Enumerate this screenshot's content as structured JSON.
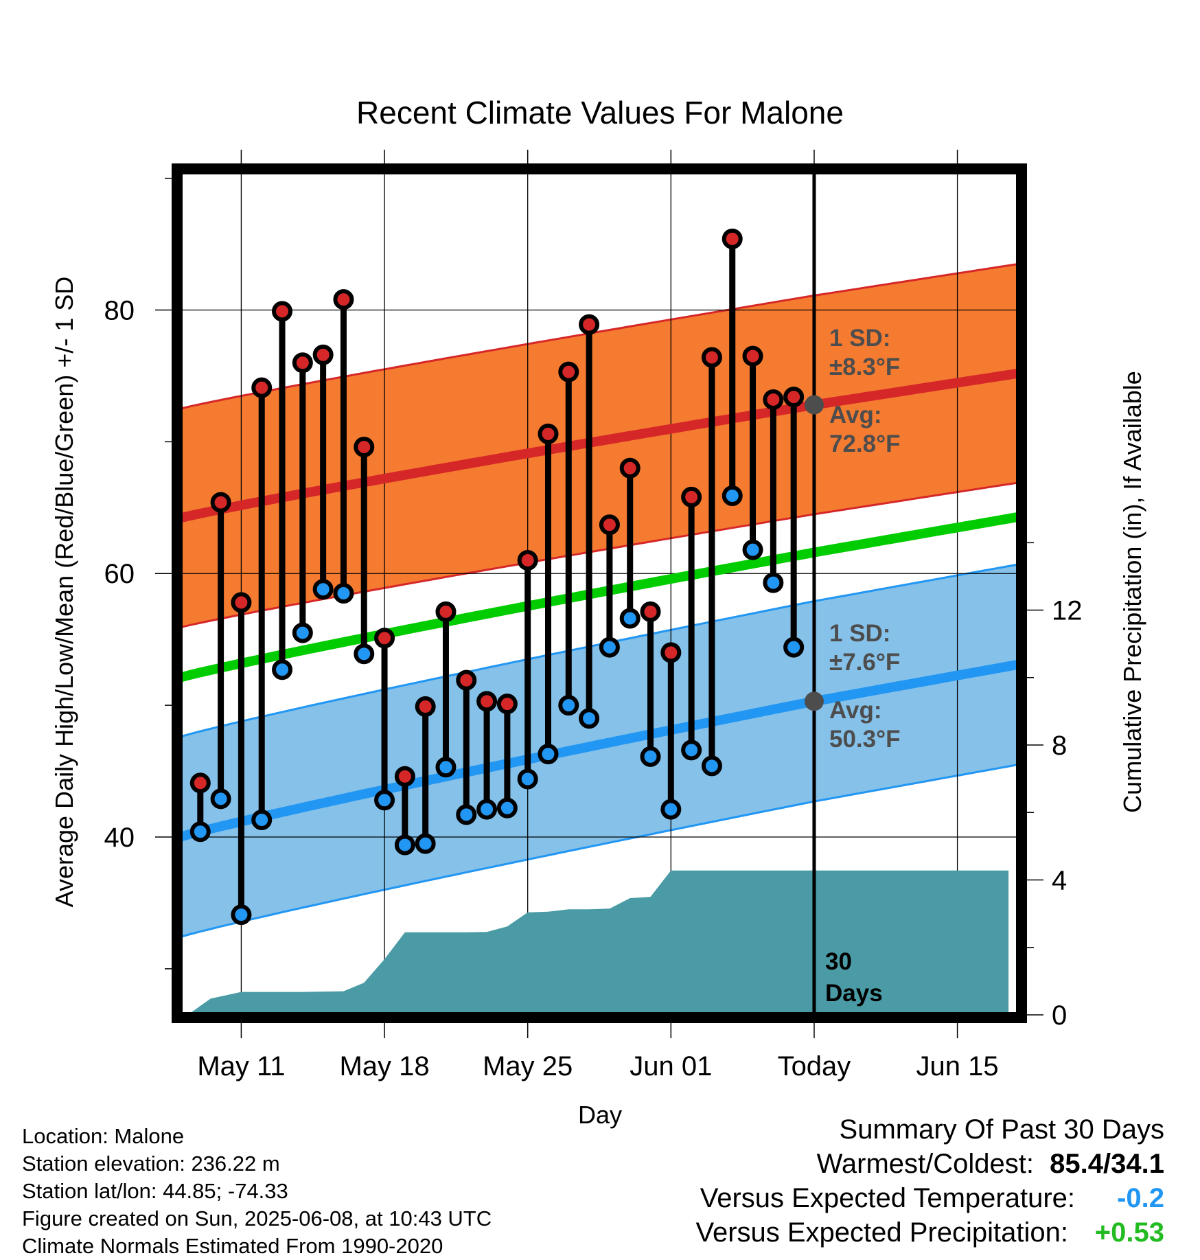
{
  "chart_data": {
    "type": "line",
    "title": "Recent Climate Values For Malone",
    "xlabel": "Day",
    "ylabel_left": "Average Daily High/Low/Mean (Red/Blue/Green) +/- 1 SD",
    "ylabel_right": "Cumulative Precipitation (in), If Available",
    "x_ticks": [
      {
        "label": "May 11",
        "day": 2
      },
      {
        "label": "May 18",
        "day": 9
      },
      {
        "label": "May 25",
        "day": 16
      },
      {
        "label": "Jun 01",
        "day": 23
      },
      {
        "label": "Today",
        "day": 30
      },
      {
        "label": "Jun 15",
        "day": 37
      }
    ],
    "x_range": [
      "May 08",
      "Jun 18"
    ],
    "y_left_ticks": [
      40,
      60,
      80
    ],
    "y_left_range": [
      26.5,
      90.5
    ],
    "y_right_ticks": [
      0,
      4,
      8,
      12
    ],
    "y_right_range": [
      0,
      25
    ],
    "grid": true,
    "days": [
      "May 09",
      "May 10",
      "May 11",
      "May 12",
      "May 13",
      "May 14",
      "May 15",
      "May 16",
      "May 17",
      "May 18",
      "May 19",
      "May 20",
      "May 21",
      "May 22",
      "May 23",
      "May 24",
      "May 25",
      "May 26",
      "May 27",
      "May 28",
      "May 29",
      "May 30",
      "May 31",
      "Jun 01",
      "Jun 02",
      "Jun 03",
      "Jun 04",
      "Jun 05",
      "Jun 06",
      "Jun 07",
      "Jun 08"
    ],
    "series": [
      {
        "name": "High",
        "color": "#d62728",
        "values": [
          44.1,
          65.4,
          57.8,
          74.1,
          79.9,
          76.0,
          76.6,
          80.8,
          69.6,
          55.1,
          44.6,
          49.9,
          57.1,
          51.9,
          50.3,
          50.1,
          61.0,
          70.6,
          75.3,
          78.9,
          63.7,
          68.0,
          57.1,
          54.0,
          65.8,
          76.4,
          85.4,
          76.5,
          73.2,
          73.4,
          null
        ]
      },
      {
        "name": "Low",
        "color": "#2196f3",
        "values": [
          40.4,
          42.9,
          34.1,
          41.3,
          52.7,
          55.5,
          58.8,
          58.5,
          53.9,
          42.8,
          39.4,
          39.5,
          45.3,
          41.7,
          42.1,
          42.2,
          44.4,
          46.3,
          50.0,
          49.0,
          54.4,
          56.6,
          46.1,
          42.1,
          46.6,
          45.4,
          65.9,
          61.8,
          59.3,
          54.4,
          null
        ]
      },
      {
        "name": "Normal High",
        "color": "#d62728",
        "values": [
          64.2,
          72.8,
          75.2
        ],
        "x": [
          "May 08",
          "Jun 08",
          "Jun 18"
        ],
        "sd": 8.3
      },
      {
        "name": "Normal Low",
        "color": "#2196f3",
        "values": [
          40.0,
          50.3,
          53.1
        ],
        "x": [
          "May 08",
          "Jun 08",
          "Jun 18"
        ],
        "sd": 7.6
      },
      {
        "name": "Normal Mean",
        "color": "#00cc00",
        "values": [
          52.1,
          61.6,
          64.3
        ],
        "x": [
          "May 08",
          "Jun 08",
          "Jun 18"
        ]
      },
      {
        "name": "Cumulative Precipitation",
        "color": "#4a9ba5",
        "x_days": [
          -0.5,
          0.5,
          2,
          3,
          5,
          6,
          7,
          8,
          9,
          10,
          11,
          12,
          13,
          14,
          15,
          16,
          17,
          18,
          19,
          20,
          21,
          22,
          23,
          24,
          25,
          26,
          27,
          28,
          29,
          30,
          31,
          32,
          33,
          34,
          35,
          36,
          37,
          38,
          39.5
        ],
        "values": [
          0.05,
          0.48,
          0.68,
          0.68,
          0.68,
          0.69,
          0.7,
          0.95,
          1.65,
          2.45,
          2.45,
          2.45,
          2.45,
          2.46,
          2.62,
          3.04,
          3.06,
          3.13,
          3.13,
          3.15,
          3.46,
          3.5,
          4.28,
          4.28,
          4.28,
          4.28,
          4.28,
          4.28,
          4.28,
          4.28,
          4.28,
          4.28,
          4.28,
          4.28,
          4.28,
          4.28,
          4.28,
          4.28,
          4.28
        ]
      }
    ],
    "today_marker": {
      "label_line1": "30",
      "label_line2": "Days",
      "day": 30
    },
    "annotations": {
      "high_sd_line1": "1 SD:",
      "high_sd_line2": "±8.3°F",
      "high_avg_line1": "Avg:",
      "high_avg_line2": "72.8°F",
      "low_sd_line1": "1 SD:",
      "low_sd_line2": "±7.6°F",
      "low_avg_line1": "Avg:",
      "low_avg_line2": "50.3°F"
    },
    "colors": {
      "high_band": "#f57b31",
      "high_band_edge": "#d62728",
      "low_band": "#85c1e9",
      "low_band_edge": "#2196f3",
      "mean_line": "#00cc00",
      "precip": "#4a9ba5",
      "avg_dot": "#4d4d4d"
    }
  },
  "meta": {
    "location": "Location: Malone",
    "elevation": "Station elevation: 236.22 m",
    "latlon": "Station lat/lon: 44.85; -74.33",
    "created": "Figure created on Sun, 2025-06-08, at 10:43 UTC",
    "normals": "Climate Normals Estimated From 1990-2020"
  },
  "summary": {
    "heading": "Summary Of Past 30 Days",
    "warmest_label": "Warmest/Coldest:",
    "warmest_value": "85.4/34.1",
    "temp_label": "Versus Expected Temperature:",
    "temp_value": "-0.2",
    "temp_color": "#2196f3",
    "precip_label": "Versus Expected Precipitation:",
    "precip_value": "+0.53",
    "precip_color": "#22bb22"
  }
}
